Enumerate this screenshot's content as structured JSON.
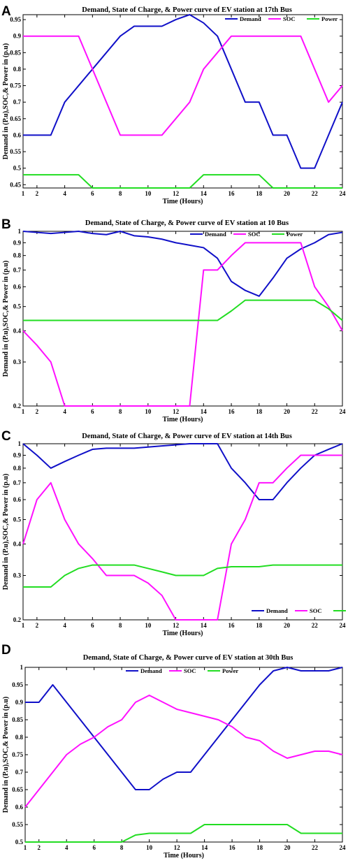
{
  "colors": {
    "demand": "#1010c8",
    "soc": "#ff10ff",
    "power": "#22dd22"
  },
  "chart_data": [
    {
      "panel": "A",
      "type": "line",
      "title": "Demand, State of Charge, & Power curve of EV station at 17th Bus",
      "xlabel": "Time (Hours)",
      "ylabel": "Demand in (P.u),SOC,& Power in (p.u)",
      "xlim": [
        1,
        24
      ],
      "ylim": [
        0.44,
        0.965
      ],
      "yscale": "linear",
      "xticks": [
        1,
        2,
        4,
        6,
        8,
        10,
        12,
        14,
        16,
        18,
        20,
        22,
        24
      ],
      "yticks": [
        0.45,
        0.5,
        0.55,
        0.6,
        0.65,
        0.7,
        0.75,
        0.8,
        0.85,
        0.9,
        0.95
      ],
      "ytick_labels": [
        "0.45",
        "0.5",
        "0.55",
        "0.6",
        "0.65",
        "0.7",
        "0.75",
        "0.8",
        "0.85",
        "0.9",
        "0.95"
      ],
      "legend": "top-right",
      "x": [
        1,
        2,
        3,
        4,
        5,
        6,
        7,
        8,
        9,
        10,
        11,
        12,
        13,
        14,
        15,
        16,
        17,
        18,
        19,
        20,
        21,
        22,
        23,
        24
      ],
      "series": [
        {
          "name": "Demand",
          "values": [
            0.6,
            0.6,
            0.6,
            0.7,
            0.75,
            0.8,
            0.85,
            0.9,
            0.93,
            0.93,
            0.93,
            0.95,
            0.965,
            0.94,
            0.9,
            0.8,
            0.7,
            0.7,
            0.6,
            0.6,
            0.5,
            0.5,
            0.6,
            0.7
          ]
        },
        {
          "name": "SOC",
          "values": [
            0.9,
            0.9,
            0.9,
            0.9,
            0.9,
            0.8,
            0.7,
            0.6,
            0.6,
            0.6,
            0.6,
            0.65,
            0.7,
            0.8,
            0.85,
            0.9,
            0.9,
            0.9,
            0.9,
            0.9,
            0.9,
            0.8,
            0.7,
            0.75
          ]
        },
        {
          "name": "Power",
          "values": [
            0.48,
            0.48,
            0.48,
            0.48,
            0.48,
            0.44,
            0.44,
            0.44,
            0.44,
            0.44,
            0.44,
            0.44,
            0.44,
            0.48,
            0.48,
            0.48,
            0.48,
            0.48,
            0.44,
            0.44,
            0.44,
            0.44,
            0.44,
            0.44
          ]
        }
      ]
    },
    {
      "panel": "B",
      "type": "line",
      "title": "Demand, State of Charge, & Power curve of EV station at 10 Bus",
      "xlabel": "Time (Hours)",
      "ylabel": "Demand in (P.u),SOC,& Power in (p.u)",
      "xlim": [
        1,
        24
      ],
      "ylim": [
        0.2,
        1.0
      ],
      "yscale": "log",
      "xticks": [
        1,
        2,
        4,
        6,
        8,
        10,
        12,
        14,
        16,
        18,
        20,
        22,
        24
      ],
      "yticks": [
        0.2,
        0.3,
        0.4,
        0.5,
        0.6,
        0.7,
        0.8,
        0.9,
        1.0
      ],
      "ytick_labels": [
        "0.2",
        "0.3",
        "0.4",
        "0.5",
        "0.6",
        "0.7",
        "0.8",
        "0.9",
        "1"
      ],
      "legend": "top-right",
      "x": [
        1,
        2,
        3,
        4,
        5,
        6,
        7,
        8,
        9,
        10,
        11,
        12,
        13,
        14,
        15,
        16,
        17,
        18,
        19,
        20,
        21,
        22,
        23,
        24
      ],
      "series": [
        {
          "name": "Demand",
          "values": [
            1.0,
            0.99,
            0.98,
            0.99,
            1.0,
            0.98,
            0.97,
            1.0,
            0.96,
            0.95,
            0.93,
            0.9,
            0.88,
            0.86,
            0.78,
            0.63,
            0.58,
            0.55,
            0.65,
            0.78,
            0.85,
            0.9,
            0.97,
            0.99
          ]
        },
        {
          "name": "SOC",
          "values": [
            0.4,
            0.35,
            0.3,
            0.2,
            0.2,
            0.2,
            0.2,
            0.2,
            0.2,
            0.2,
            0.2,
            0.2,
            0.2,
            0.7,
            0.7,
            0.8,
            0.9,
            0.9,
            0.9,
            0.9,
            0.9,
            0.6,
            0.5,
            0.4
          ]
        },
        {
          "name": "Power",
          "values": [
            0.44,
            0.44,
            0.44,
            0.44,
            0.44,
            0.44,
            0.44,
            0.44,
            0.44,
            0.44,
            0.44,
            0.44,
            0.44,
            0.44,
            0.44,
            0.48,
            0.53,
            0.53,
            0.53,
            0.53,
            0.53,
            0.53,
            0.49,
            0.44
          ]
        }
      ]
    },
    {
      "panel": "C",
      "type": "line",
      "title": "Demand, State of Charge, & Power curve of EV station at 14th Bus",
      "xlabel": "Time (Hours)",
      "ylabel": "Demand in (P.u),SOC,& Power in (p.u)",
      "xlim": [
        1,
        24
      ],
      "ylim": [
        0.2,
        1.0
      ],
      "yscale": "log",
      "xticks": [
        1,
        2,
        4,
        6,
        8,
        10,
        12,
        14,
        16,
        18,
        20,
        22,
        24
      ],
      "yticks": [
        0.2,
        0.3,
        0.4,
        0.5,
        0.6,
        0.7,
        0.8,
        0.9,
        1.0
      ],
      "ytick_labels": [
        "0.2",
        "0.3",
        "0.4",
        "0.5",
        "0.6",
        "0.7",
        "0.8",
        "0.9",
        "1"
      ],
      "legend": "bottom-right",
      "x": [
        1,
        2,
        3,
        4,
        5,
        6,
        7,
        8,
        9,
        10,
        11,
        12,
        13,
        14,
        15,
        16,
        17,
        18,
        19,
        20,
        21,
        22,
        23,
        24
      ],
      "series": [
        {
          "name": "Demand",
          "values": [
            1.0,
            0.9,
            0.8,
            0.85,
            0.9,
            0.95,
            0.96,
            0.96,
            0.96,
            0.97,
            0.98,
            0.99,
            1.0,
            1.0,
            1.0,
            0.8,
            0.7,
            0.6,
            0.6,
            0.7,
            0.8,
            0.9,
            0.95,
            1.0
          ]
        },
        {
          "name": "SOC",
          "values": [
            0.4,
            0.6,
            0.7,
            0.5,
            0.4,
            0.35,
            0.3,
            0.3,
            0.3,
            0.28,
            0.25,
            0.2,
            0.2,
            0.2,
            0.2,
            0.4,
            0.5,
            0.7,
            0.7,
            0.8,
            0.9,
            0.9,
            0.9,
            0.9
          ]
        },
        {
          "name": "Power",
          "values": [
            0.27,
            0.27,
            0.27,
            0.3,
            0.32,
            0.33,
            0.33,
            0.33,
            0.33,
            0.32,
            0.31,
            0.3,
            0.3,
            0.3,
            0.32,
            0.325,
            0.325,
            0.325,
            0.33,
            0.33,
            0.33,
            0.33,
            0.33,
            0.33
          ]
        }
      ]
    },
    {
      "panel": "D",
      "type": "line",
      "title": "Demand, State of Charge, & Power curve of EV station at 30th Bus",
      "xlabel": "Time (Hours)",
      "ylabel": "Demand in (P.u),SOC,& Power in (p.u)",
      "xlim": [
        1,
        24
      ],
      "ylim": [
        0.5,
        1.0
      ],
      "yscale": "linear",
      "xticks": [
        1,
        2,
        4,
        6,
        8,
        10,
        12,
        14,
        16,
        18,
        20,
        22,
        24
      ],
      "yticks": [
        0.5,
        0.55,
        0.6,
        0.65,
        0.7,
        0.75,
        0.8,
        0.85,
        0.9,
        0.95,
        1.0
      ],
      "ytick_labels": [
        "0.5",
        "0.55",
        "0.6",
        "0.65",
        "0.7",
        "0.75",
        "0.8",
        "0.85",
        "0.9",
        "0.95",
        "1"
      ],
      "legend": "top-center",
      "x": [
        1,
        2,
        3,
        4,
        5,
        6,
        7,
        8,
        9,
        10,
        11,
        12,
        13,
        14,
        15,
        16,
        17,
        18,
        19,
        20,
        21,
        22,
        23,
        24
      ],
      "series": [
        {
          "name": "Demand",
          "values": [
            0.9,
            0.9,
            0.95,
            0.9,
            0.85,
            0.8,
            0.75,
            0.7,
            0.65,
            0.65,
            0.68,
            0.7,
            0.7,
            0.75,
            0.8,
            0.85,
            0.9,
            0.95,
            0.99,
            1.0,
            0.99,
            0.99,
            0.99,
            1.0
          ]
        },
        {
          "name": "SOC",
          "values": [
            0.6,
            0.65,
            0.7,
            0.75,
            0.78,
            0.8,
            0.83,
            0.85,
            0.9,
            0.92,
            0.9,
            0.88,
            0.87,
            0.86,
            0.85,
            0.83,
            0.8,
            0.79,
            0.76,
            0.74,
            0.75,
            0.76,
            0.76,
            0.75
          ]
        },
        {
          "name": "Power",
          "values": [
            0.5,
            0.5,
            0.5,
            0.5,
            0.5,
            0.5,
            0.5,
            0.5,
            0.52,
            0.525,
            0.525,
            0.525,
            0.525,
            0.55,
            0.55,
            0.55,
            0.55,
            0.55,
            0.55,
            0.55,
            0.525,
            0.525,
            0.525,
            0.525
          ]
        }
      ]
    }
  ]
}
